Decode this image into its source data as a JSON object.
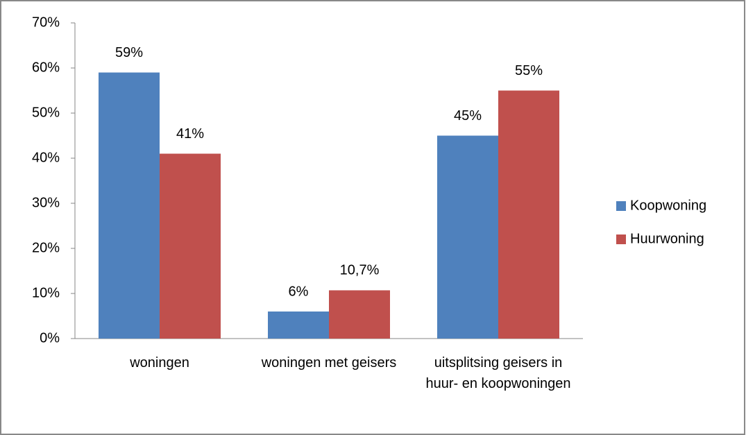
{
  "chart_data": {
    "type": "bar",
    "categories": [
      "woningen",
      "woningen met geisers",
      "uitsplitsing geisers in huur- en koopwoningen"
    ],
    "series": [
      {
        "name": "Koopwoning",
        "color": "#4f81bd",
        "values": [
          59,
          6,
          45
        ],
        "value_labels": [
          "59%",
          "6%",
          "45%"
        ]
      },
      {
        "name": "Huurwoning",
        "color": "#c0504d",
        "values": [
          41,
          10.7,
          55
        ],
        "value_labels": [
          "41%",
          "10,7%",
          "55%"
        ]
      }
    ],
    "ylim": [
      0,
      70
    ],
    "yticks": [
      {
        "value": 0,
        "label": "0%"
      },
      {
        "value": 10,
        "label": "10%"
      },
      {
        "value": 20,
        "label": "20%"
      },
      {
        "value": 30,
        "label": "30%"
      },
      {
        "value": 40,
        "label": "40%"
      },
      {
        "value": 50,
        "label": "50%"
      },
      {
        "value": 60,
        "label": "60%"
      },
      {
        "value": 70,
        "label": "70%"
      }
    ],
    "grid": false,
    "legend": "right"
  }
}
